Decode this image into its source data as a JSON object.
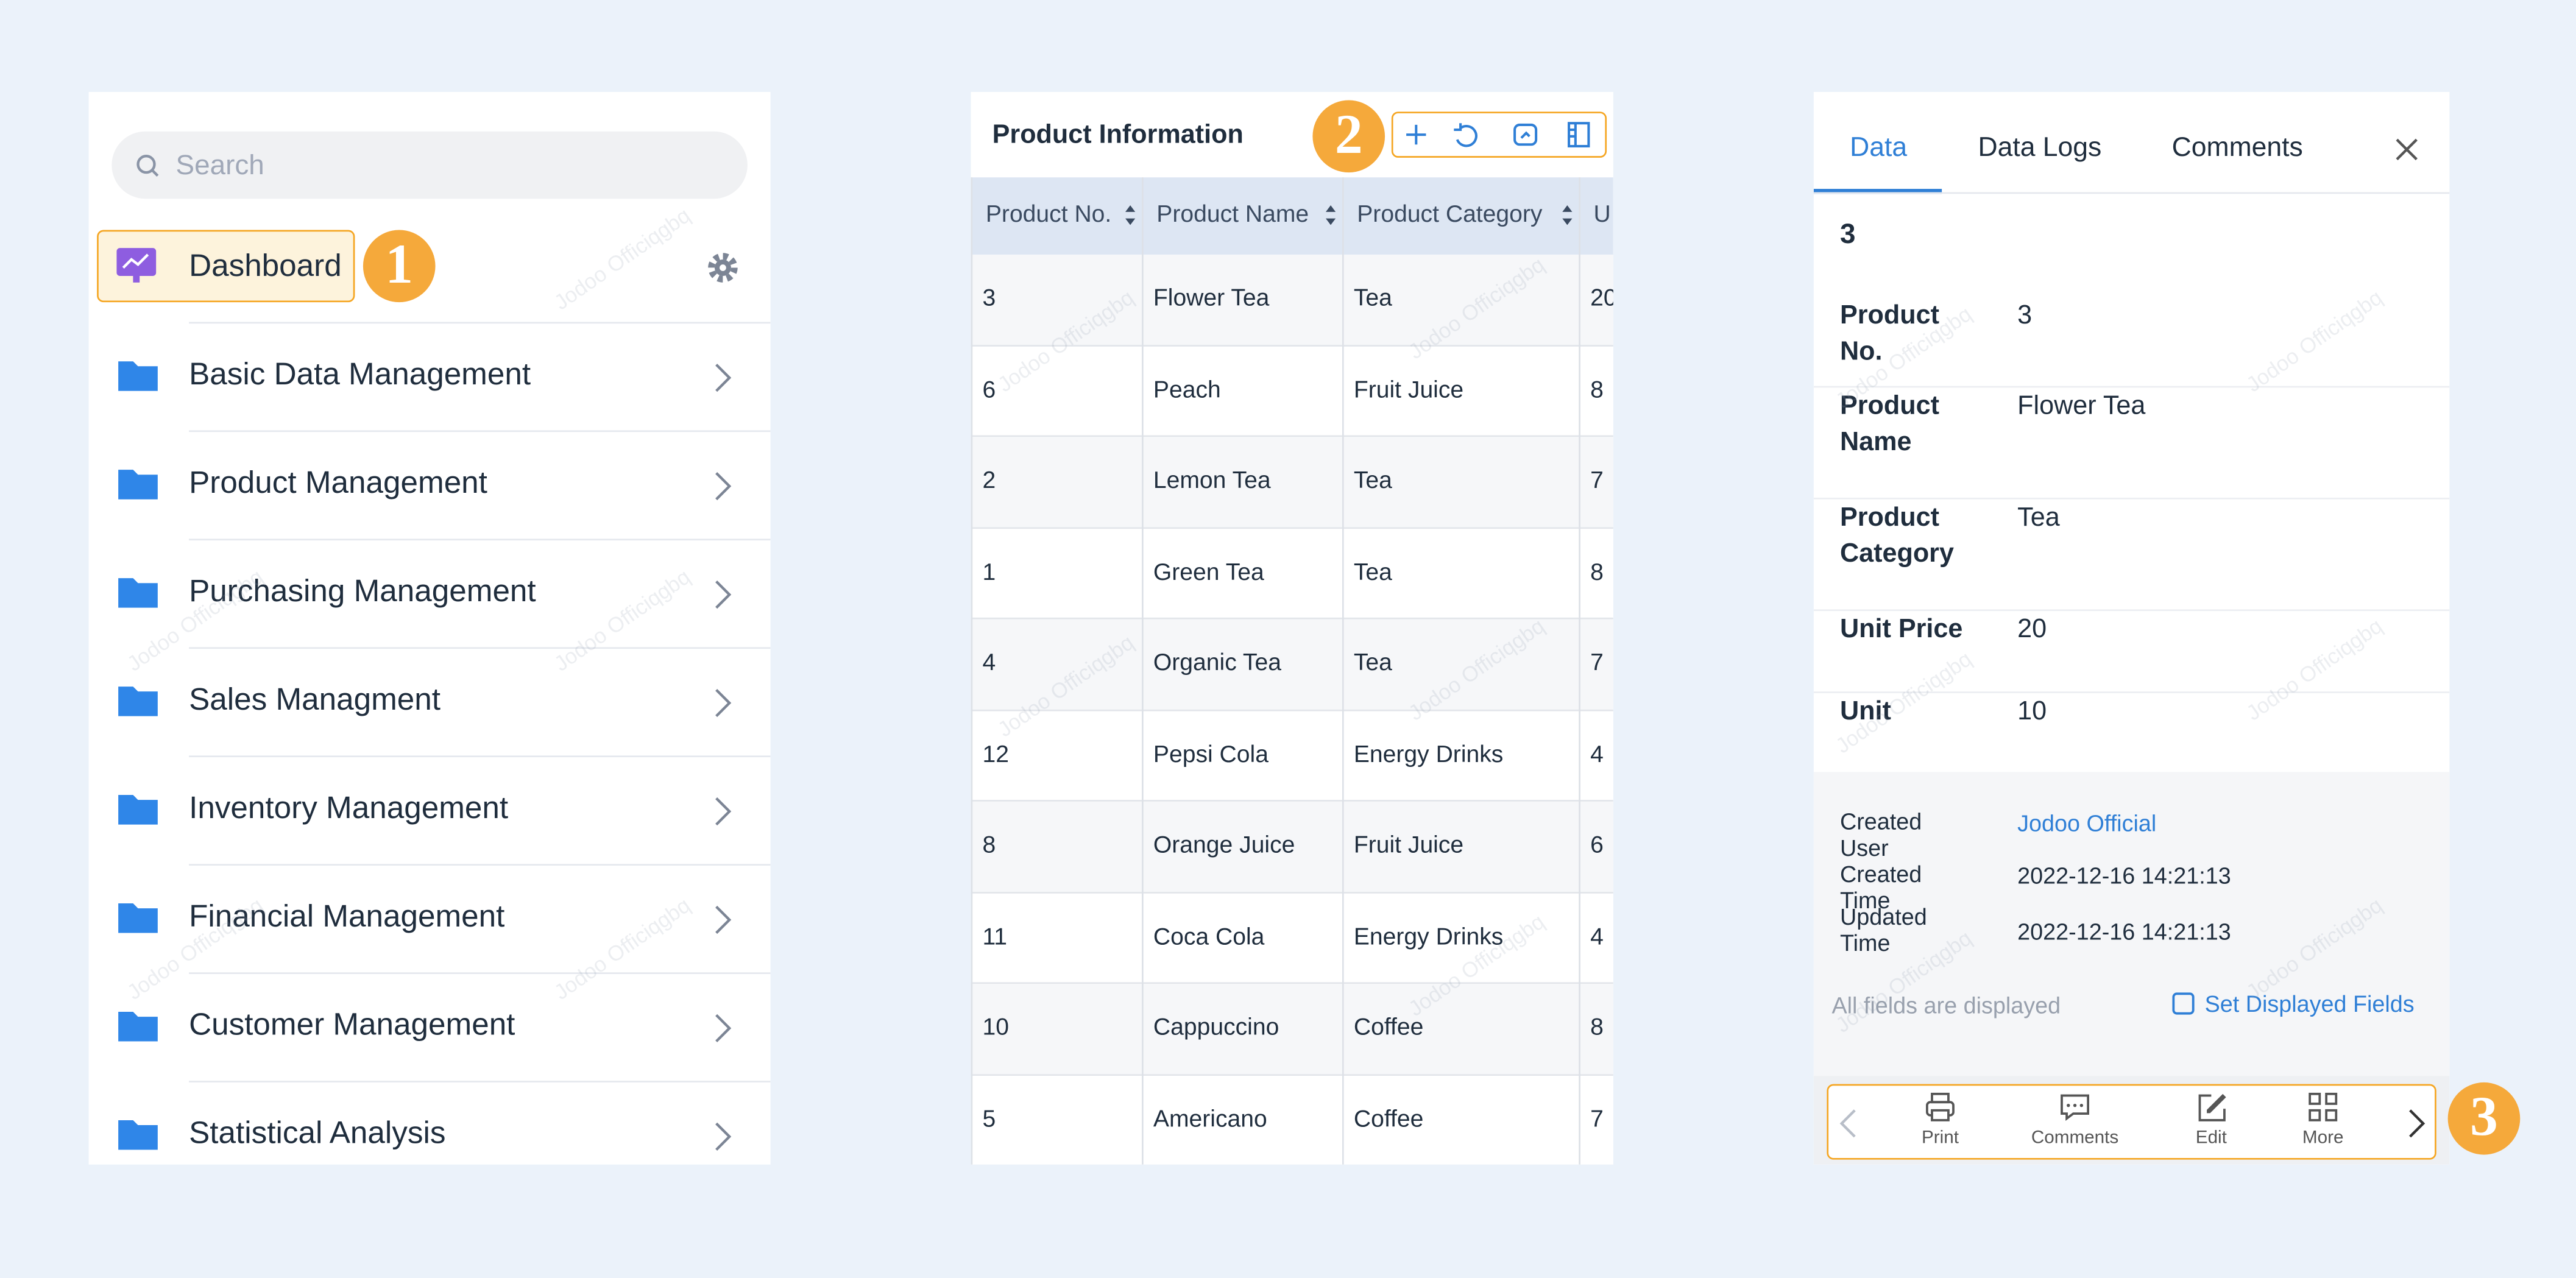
{
  "watermark": "Jodoo Officiqgbq",
  "navigation": {
    "search_placeholder": "Search",
    "dashboard": "Dashboard",
    "badge": "1",
    "items": [
      "Basic Data Management",
      "Product Management",
      "Purchasing Management",
      "Sales Managment",
      "Inventory Management",
      "Financial Management",
      "Customer Management",
      "Statistical Analysis"
    ]
  },
  "table": {
    "title": "Product Information",
    "badge": "2",
    "columns": [
      "Product No.",
      "Product Name",
      "Product Category",
      "U"
    ],
    "rows": [
      [
        "3",
        "Flower Tea",
        "Tea",
        "20"
      ],
      [
        "6",
        "Peach",
        "Fruit Juice",
        "8"
      ],
      [
        "2",
        "Lemon Tea",
        "Tea",
        "7"
      ],
      [
        "1",
        "Green Tea",
        "Tea",
        "8"
      ],
      [
        "4",
        "Organic Tea",
        "Tea",
        "7"
      ],
      [
        "12",
        "Pepsi Cola",
        "Energy Drinks",
        "4"
      ],
      [
        "8",
        "Orange Juice",
        "Fruit Juice",
        "6"
      ],
      [
        "11",
        "Coca Cola",
        "Energy Drinks",
        "4"
      ],
      [
        "10",
        "Cappuccino",
        "Coffee",
        "8"
      ],
      [
        "5",
        "Americano",
        "Coffee",
        "7"
      ]
    ]
  },
  "detail": {
    "tabs": [
      "Data",
      "Data Logs",
      "Comments"
    ],
    "record_title": "3",
    "fields": [
      {
        "label": "Product No.",
        "value": "3"
      },
      {
        "label": "Product Name",
        "value": "Flower Tea"
      },
      {
        "label": "Product Category",
        "value": "Tea"
      },
      {
        "label": "Unit Price",
        "value": "20"
      },
      {
        "label": "Unit",
        "value": "10"
      }
    ],
    "meta": [
      {
        "label": "Created User",
        "value": "Jodoo Official"
      },
      {
        "label": "Created Time",
        "value": "2022-12-16 14:21:13"
      },
      {
        "label": "Updated Time",
        "value": "2022-12-16 14:21:13"
      }
    ],
    "fields_note": "All fields are displayed",
    "set_fields": "Set Displayed Fields",
    "toolbar": [
      "Print",
      "Comments",
      "Edit",
      "More"
    ],
    "badge": "3"
  }
}
